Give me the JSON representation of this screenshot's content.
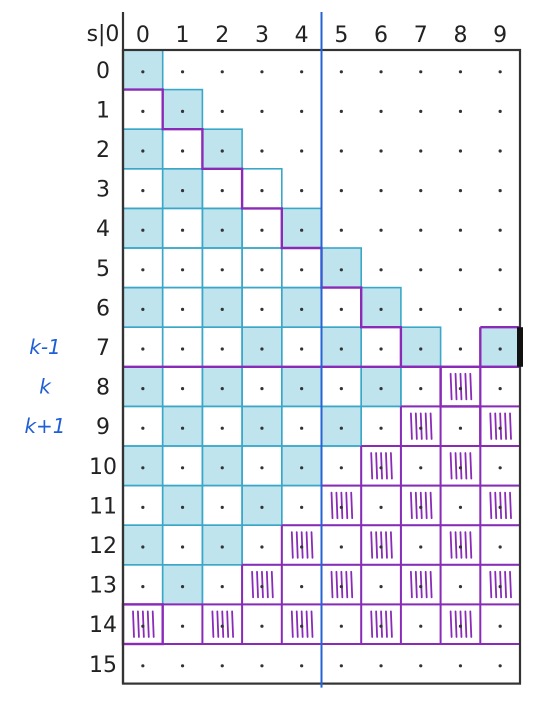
{
  "corner_label": "s|0",
  "col_headers": [
    "0",
    "1",
    "2",
    "3",
    "4",
    "5",
    "6",
    "7",
    "8",
    "9"
  ],
  "row_headers": [
    "0",
    "1",
    "2",
    "3",
    "4",
    "5",
    "6",
    "7",
    "8",
    "9",
    "10",
    "11",
    "12",
    "13",
    "14",
    "15"
  ],
  "side_labels": [
    {
      "text": "k-1",
      "row": 7
    },
    {
      "text": "k",
      "row": 8
    },
    {
      "text": "k+1",
      "row": 9
    }
  ],
  "colors": {
    "cyan_fill": "#bfe4ee",
    "cyan_line": "#3aa7c9",
    "purple": "#8a2bb8",
    "blue_divider": "#2563d6",
    "frame": "#333333"
  },
  "shaded_cells": [
    [
      0,
      0
    ],
    [
      1,
      1
    ],
    [
      2,
      0
    ],
    [
      2,
      2
    ],
    [
      3,
      1
    ],
    [
      4,
      0
    ],
    [
      4,
      2
    ],
    [
      4,
      4
    ],
    [
      5,
      5
    ],
    [
      6,
      0
    ],
    [
      6,
      2
    ],
    [
      6,
      4
    ],
    [
      6,
      6
    ],
    [
      7,
      3
    ],
    [
      7,
      5
    ],
    [
      7,
      7
    ],
    [
      7,
      9
    ],
    [
      8,
      0
    ],
    [
      8,
      2
    ],
    [
      8,
      4
    ],
    [
      8,
      6
    ],
    [
      9,
      1
    ],
    [
      9,
      3
    ],
    [
      9,
      5
    ],
    [
      10,
      0
    ],
    [
      10,
      2
    ],
    [
      10,
      4
    ],
    [
      11,
      1
    ],
    [
      11,
      3
    ],
    [
      12,
      0
    ],
    [
      12,
      2
    ],
    [
      13,
      1
    ]
  ],
  "hatched_cells": [
    [
      8,
      8
    ],
    [
      9,
      7
    ],
    [
      9,
      9
    ],
    [
      10,
      6
    ],
    [
      10,
      8
    ],
    [
      11,
      5
    ],
    [
      11,
      7
    ],
    [
      11,
      9
    ],
    [
      12,
      4
    ],
    [
      12,
      6
    ],
    [
      12,
      8
    ],
    [
      13,
      3
    ],
    [
      13,
      5
    ],
    [
      13,
      7
    ],
    [
      13,
      9
    ],
    [
      14,
      0
    ],
    [
      14,
      2
    ],
    [
      14,
      4
    ],
    [
      14,
      6
    ],
    [
      14,
      8
    ]
  ],
  "staircase_top_cols": [
    0,
    1,
    2,
    3,
    4,
    5,
    6,
    7,
    8,
    10
  ],
  "purple_lower_region_rows": [
    8,
    14
  ],
  "divider_after_col": 4
}
